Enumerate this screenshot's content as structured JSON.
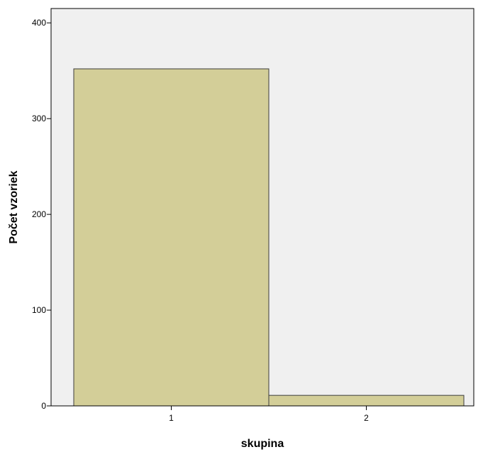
{
  "chart_data": {
    "type": "bar",
    "title": "",
    "xlabel": "skupina",
    "ylabel": "Počet vzoriek",
    "categories": [
      "1",
      "2"
    ],
    "values": [
      352,
      11
    ],
    "ylim": [
      0,
      415
    ],
    "yticks": [
      0,
      100,
      200,
      300,
      400
    ],
    "grid": false,
    "legend": "none",
    "bar_color": "#d3ce98",
    "bar_edge_color": "#3c3c3c",
    "plot_background": "#f0f0f0"
  }
}
